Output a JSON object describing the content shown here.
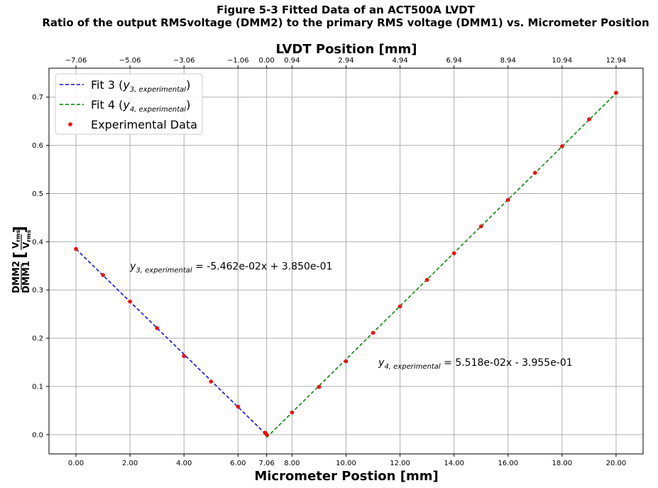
{
  "chart_data": {
    "type": "scatter",
    "title_line1": "Figure 5-3 Fitted Data of an ACT500A LVDT",
    "title_line2": "Ratio of the output RMSvoltage (DMM2) to the primary RMS voltage (DMM1) vs. Micrometer Position",
    "xlabel": "Micrometer Postion [mm]",
    "x2label": "LVDT Position [mm]",
    "ylabel_num": "DMM2",
    "ylabel_den": "DMM1",
    "ylabel_unit_num": "V",
    "ylabel_unit_num_sub": "rms",
    "ylabel_unit_den": "V",
    "ylabel_unit_den_sub": "rms",
    "xlim": [
      -1,
      21
    ],
    "ylim": [
      -0.04,
      0.76
    ],
    "grid": true,
    "legend_placement": "top-left",
    "x_ticks": [
      0,
      2,
      4,
      6,
      7.06,
      8,
      10,
      12,
      14,
      16,
      18,
      20
    ],
    "x_tick_labels": [
      "0.00",
      "2.00",
      "4.00",
      "6.00",
      "7.06",
      "8.00",
      "10.00",
      "12.00",
      "14.00",
      "16.00",
      "18.00",
      "20.00"
    ],
    "x2_tick_labels": [
      "−7.06",
      "−5.06",
      "−3.06",
      "−1.06",
      "0.00",
      "0.94",
      "2.94",
      "4.94",
      "6.94",
      "8.94",
      "10.94",
      "12.94"
    ],
    "y_ticks": [
      0.0,
      0.1,
      0.2,
      0.3,
      0.4,
      0.5,
      0.6,
      0.7
    ],
    "y_tick_labels": [
      "0.0",
      "0.1",
      "0.2",
      "0.3",
      "0.4",
      "0.5",
      "0.6",
      "0.7"
    ],
    "series": [
      {
        "name": "Experimental Data",
        "kind": "scatter",
        "color": "#ff0000",
        "x": [
          0,
          1,
          2,
          3,
          4,
          5,
          6,
          7,
          7.06,
          8,
          9,
          10,
          11,
          12,
          13,
          14,
          15,
          16,
          17,
          18,
          19,
          20
        ],
        "y": [
          0.385,
          0.331,
          0.276,
          0.221,
          0.163,
          0.11,
          0.058,
          0.004,
          0.0,
          0.046,
          0.099,
          0.152,
          0.211,
          0.266,
          0.321,
          0.376,
          0.432,
          0.487,
          0.543,
          0.598,
          0.654,
          0.709
        ]
      },
      {
        "name": "Fit 3",
        "name_sub": "3, experimental",
        "kind": "line",
        "color": "#0000ff",
        "slope": -0.05462,
        "intercept": 0.385,
        "x_range": [
          0,
          7.06
        ]
      },
      {
        "name": "Fit 4",
        "name_sub": "4, experimental",
        "kind": "line",
        "color": "#008000",
        "slope": 0.05518,
        "intercept": -0.3955,
        "x_range": [
          7.06,
          20
        ]
      }
    ],
    "annotations": [
      {
        "sub": "3, experimental",
        "text": " = -5.462e-02x + 3.850e-01",
        "x": 2.0,
        "y": 0.35
      },
      {
        "sub": "4, experimental",
        "text": " = 5.518e-02x - 3.955e-01",
        "x": 11.2,
        "y": 0.15
      }
    ]
  }
}
